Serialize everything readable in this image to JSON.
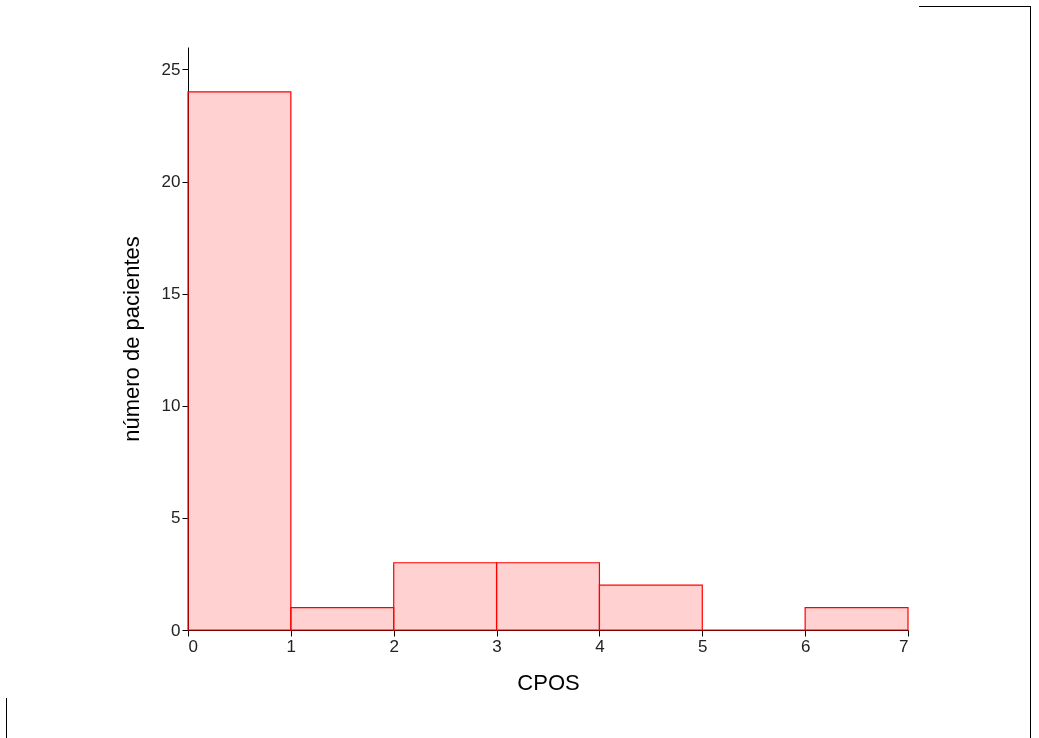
{
  "chart_data": {
    "type": "histogram",
    "xlabel": "CPOS",
    "ylabel": "número de pacientes",
    "bins": [
      0,
      1,
      2,
      3,
      4,
      5,
      6,
      7
    ],
    "values": [
      24,
      1,
      3,
      3,
      2,
      0,
      1
    ],
    "color": "#ff0000",
    "xlim": [
      0,
      7
    ],
    "xticks": [
      0,
      1,
      2,
      3,
      4,
      5,
      6,
      7
    ],
    "ylim": [
      0,
      26
    ],
    "yticks": [
      0,
      5,
      10,
      15,
      20,
      25
    ],
    "grid": false
  }
}
